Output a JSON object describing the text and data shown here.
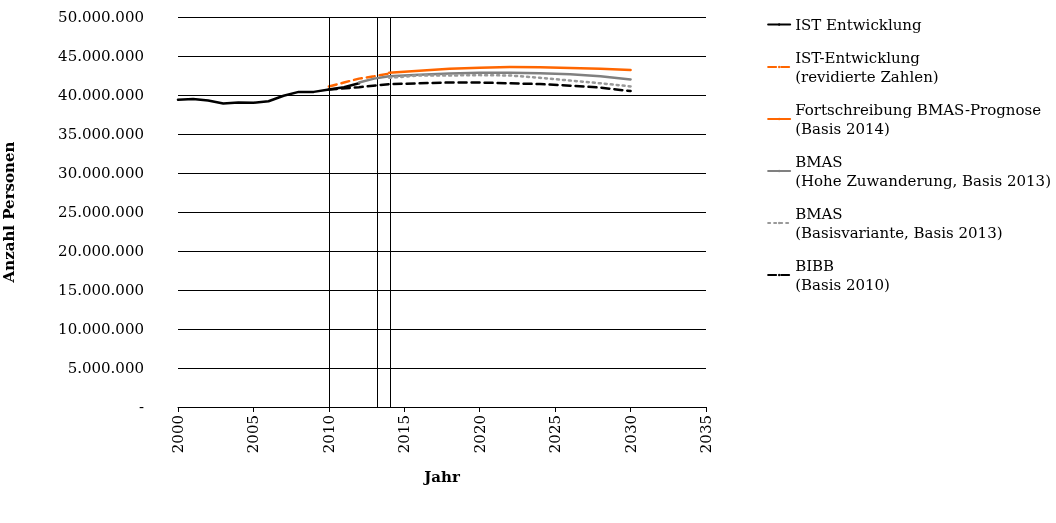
{
  "chart_data": {
    "type": "line",
    "xlabel": "Jahr",
    "ylabel": "Anzahl Personen",
    "xlim": [
      2000,
      2035
    ],
    "xticks": [
      2000,
      2005,
      2010,
      2015,
      2020,
      2025,
      2030,
      2035
    ],
    "ylim": [
      0,
      50000000
    ],
    "yticks": [
      {
        "value": 0,
        "label": "-"
      },
      {
        "value": 5000000,
        "label": "5.000.000"
      },
      {
        "value": 10000000,
        "label": "10.000.000"
      },
      {
        "value": 15000000,
        "label": "15.000.000"
      },
      {
        "value": 20000000,
        "label": "20.000.000"
      },
      {
        "value": 25000000,
        "label": "25.000.000"
      },
      {
        "value": 30000000,
        "label": "30.000.000"
      },
      {
        "value": 35000000,
        "label": "35.000.000"
      },
      {
        "value": 40000000,
        "label": "40.000.000"
      },
      {
        "value": 45000000,
        "label": "45.000.000"
      },
      {
        "value": 50000000,
        "label": "50.000.000"
      }
    ],
    "grid": "y",
    "legend": "right",
    "marker": "none",
    "ref_lines": [
      {
        "axis": "x",
        "value": 2010,
        "color": "#000000"
      },
      {
        "axis": "x",
        "value": 2013.2,
        "color": "#000000"
      },
      {
        "axis": "x",
        "value": 2014.1,
        "color": "#000000"
      }
    ],
    "series": [
      {
        "name": "IST Entwicklung",
        "color": "#000000",
        "line_style": "solid",
        "x": [
          2000,
          2001,
          2002,
          2003,
          2004,
          2005,
          2006,
          2007,
          2008,
          2009,
          2010,
          2011,
          2012
        ],
        "values": [
          39400000,
          39500000,
          39300000,
          38900000,
          39050000,
          39000000,
          39200000,
          39900000,
          40400000,
          40400000,
          40700000,
          41000000,
          41500000
        ]
      },
      {
        "name": "IST-Entwicklung\n(revidierte Zahlen)",
        "color": "#ff6600",
        "line_style": "dashed",
        "x": [
          2010,
          2011,
          2012,
          2013,
          2014
        ],
        "values": [
          41100000,
          41600000,
          42100000,
          42400000,
          42750000
        ]
      },
      {
        "name": "Fortschreibung BMAS-Prognose\n(Basis 2014)",
        "color": "#ff6600",
        "line_style": "solid",
        "x": [
          2014,
          2016,
          2018,
          2020,
          2022,
          2024,
          2026,
          2028,
          2030
        ],
        "values": [
          42850000,
          43100000,
          43350000,
          43500000,
          43600000,
          43550000,
          43450000,
          43350000,
          43200000
        ]
      },
      {
        "name": "BMAS\n(Hohe Zuwanderung, Basis 2013)",
        "color": "#808080",
        "line_style": "solid",
        "x": [
          2012,
          2013,
          2014,
          2016,
          2018,
          2020,
          2022,
          2024,
          2026,
          2028,
          2030
        ],
        "values": [
          41600000,
          42100000,
          42400000,
          42600000,
          42750000,
          42850000,
          42850000,
          42800000,
          42650000,
          42400000,
          42000000
        ]
      },
      {
        "name": "BMAS\n(Basisvariante, Basis 2013)",
        "color": "#999999",
        "line_style": "dotted",
        "x": [
          2014,
          2016,
          2018,
          2020,
          2022,
          2024,
          2026,
          2028,
          2030
        ],
        "values": [
          42200000,
          42500000,
          42500000,
          42550000,
          42500000,
          42200000,
          41850000,
          41500000,
          41100000
        ]
      },
      {
        "name": "BIBB\n(Basis 2010)",
        "color": "#000000",
        "line_style": "dashed",
        "x": [
          2010,
          2012,
          2014,
          2016,
          2018,
          2020,
          2022,
          2024,
          2026,
          2028,
          2030
        ],
        "values": [
          40700000,
          41000000,
          41400000,
          41500000,
          41600000,
          41600000,
          41500000,
          41400000,
          41200000,
          40950000,
          40500000
        ]
      }
    ]
  }
}
